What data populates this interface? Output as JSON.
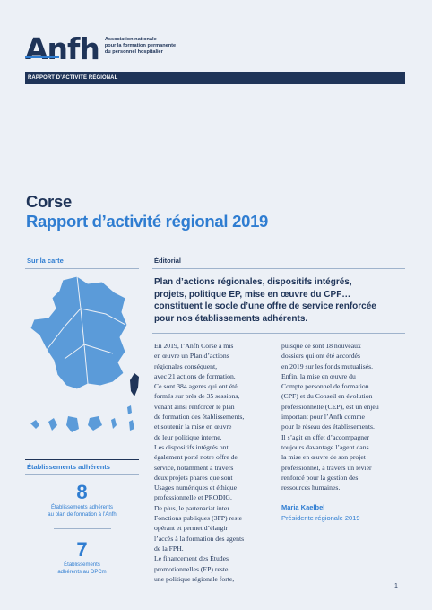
{
  "header": {
    "logo_text": "Anfh",
    "tagline": [
      "Association nationale",
      "pour la formation permanente",
      "du personnel hospitalier"
    ],
    "banner": "RAPPORT D’ACTIVITÉ RÉGIONAL"
  },
  "title": {
    "region": "Corse",
    "subtitle": "Rapport d’activité régional 2019"
  },
  "left": {
    "map_heading": "Sur la carte",
    "establishments_heading": "Établissements adhérents",
    "kpis": [
      {
        "value": "8",
        "label_lines": [
          "Établissements adhérents",
          "au plan de formation à l’Anfh"
        ]
      },
      {
        "value": "7",
        "label_lines": [
          "Établissements",
          "adhérents au DPCm"
        ]
      }
    ],
    "map_colors": {
      "mainland": "#5b9bd9",
      "highlight": "#1f3458",
      "overseas": "#5b9bd9"
    }
  },
  "editorial": {
    "heading": "Éditorial",
    "lead_lines": [
      "Plan d’actions régionales, dispositifs intégrés,",
      "projets, politique EP, mise en œuvre du CPF…",
      "constituent le socle d’une offre de service renforcée",
      "pour nos établissements adhérents."
    ],
    "col1_lines": [
      "En 2019, l’Anfh Corse a mis",
      "en œuvre un Plan d’actions",
      "régionales conséquent,",
      "avec 21 actions de formation.",
      "Ce sont 384 agents qui ont été",
      "formés sur près de 35 sessions,",
      "venant ainsi renforcer le plan",
      "de formation des établissements,",
      "et soutenir la mise en œuvre",
      "de leur politique interne.",
      "Les dispositifs intégrés ont",
      "également porté notre offre de",
      "service, notamment à travers",
      "deux projets phares que sont",
      "Usages numériques et éthique",
      "professionnelle et PRODIG.",
      "De plus, le partenariat inter",
      "Fonctions publiques (3FP) reste",
      "opérant et permet d’élargir",
      "l’accès à la formation des agents",
      "de la FPH.",
      "Le financement des Études",
      "promotionnelles (EP) reste",
      "une politique régionale forte,"
    ],
    "col2_lines": [
      "puisque ce sont 18 nouveaux",
      "dossiers qui ont été accordés",
      "en 2019 sur les fonds mutualisés.",
      "Enfin, la mise en œuvre du",
      "Compte personnel de formation",
      "(CPF) et du Conseil en évolution",
      "professionnelle (CEP), est un enjeu",
      "important pour l’Anfh comme",
      "pour le réseau des établissements.",
      "Il s’agit en effet d’accompagner",
      "toujours davantage l’agent dans",
      "la mise en œuvre de son projet",
      "professionnel, à travers un levier",
      "renforcé pour la gestion des",
      "ressources humaines."
    ],
    "signature_name": "Maria Kaelbel",
    "signature_role": "Présidente régionale 2019"
  },
  "page_number": "1"
}
